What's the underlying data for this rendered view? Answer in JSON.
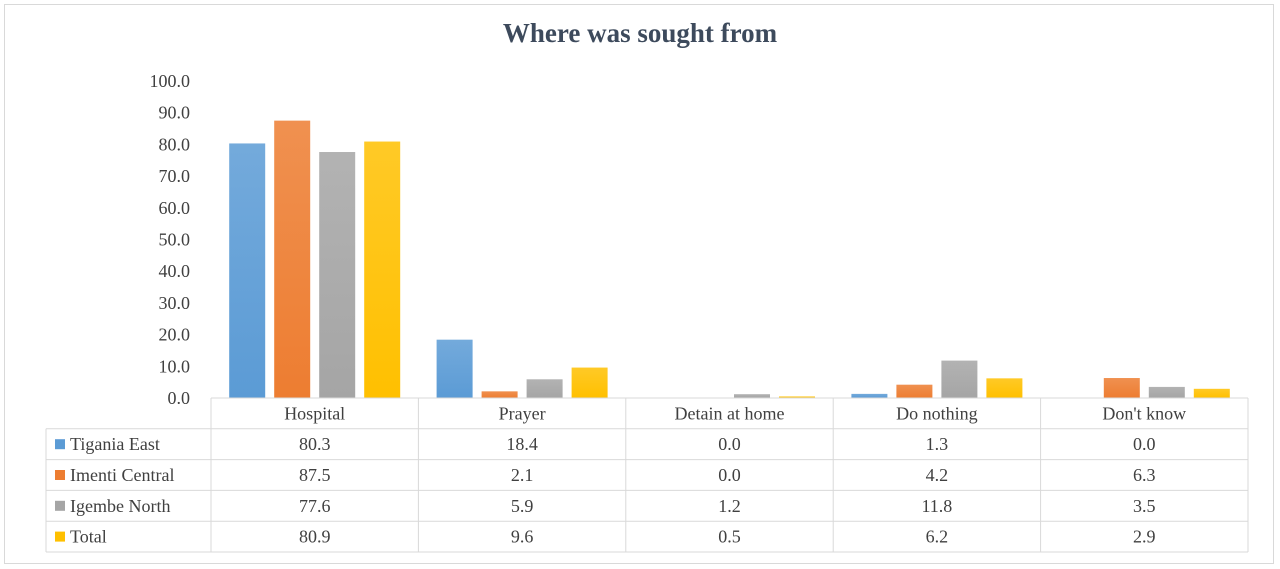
{
  "chart_data": {
    "type": "bar",
    "title": "Where was sought from",
    "categories": [
      "Hospital",
      "Prayer",
      "Detain at home",
      "Do nothing",
      "Don't know"
    ],
    "ylim": [
      0,
      100
    ],
    "yticks": [
      "0.0",
      "10.0",
      "20.0",
      "30.0",
      "40.0",
      "50.0",
      "60.0",
      "70.0",
      "80.0",
      "90.0",
      "100.0"
    ],
    "grid": false,
    "legend": "data-table-left",
    "series": [
      {
        "name": "Tigania East",
        "color": "#5b9bd5",
        "values": [
          80.3,
          18.4,
          0.0,
          1.3,
          0.0
        ],
        "labels": [
          "80.3",
          "18.4",
          "0.0",
          "1.3",
          "0.0"
        ]
      },
      {
        "name": "Imenti Central",
        "color": "#ed7d31",
        "values": [
          87.5,
          2.1,
          0.0,
          4.2,
          6.3
        ],
        "labels": [
          "87.5",
          "2.1",
          "0.0",
          "4.2",
          "6.3"
        ]
      },
      {
        "name": "Igembe North",
        "color": "#a5a5a5",
        "values": [
          77.6,
          5.9,
          1.2,
          11.8,
          3.5
        ],
        "labels": [
          "77.6",
          "5.9",
          "1.2",
          "11.8",
          "3.5"
        ]
      },
      {
        "name": "Total",
        "color": "#ffc000",
        "values": [
          80.9,
          9.6,
          0.5,
          6.2,
          2.9
        ],
        "labels": [
          "80.9",
          "9.6",
          "0.5",
          "6.2",
          "2.9"
        ]
      }
    ]
  }
}
